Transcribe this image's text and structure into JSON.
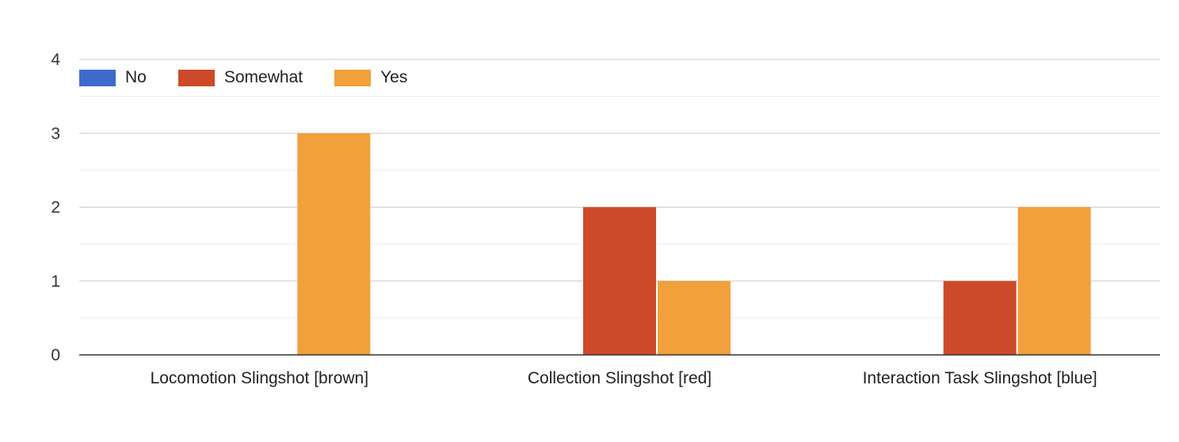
{
  "chart_data": {
    "type": "bar",
    "categories": [
      "Locomotion Slingshot [brown]",
      "Collection Slingshot [red]",
      "Interaction Task Slingshot [blue]"
    ],
    "series": [
      {
        "name": "No",
        "values": [
          0,
          0,
          0
        ],
        "color": "#3f69cc"
      },
      {
        "name": "Somewhat",
        "values": [
          0,
          2,
          1
        ],
        "color": "#cc4a29"
      },
      {
        "name": "Yes",
        "values": [
          3,
          1,
          2
        ],
        "color": "#f2a03b"
      }
    ],
    "ylim": [
      0,
      4
    ],
    "yticks": [
      "0",
      "1",
      "2",
      "3",
      "4"
    ],
    "grid": true,
    "legend": "top-left"
  }
}
